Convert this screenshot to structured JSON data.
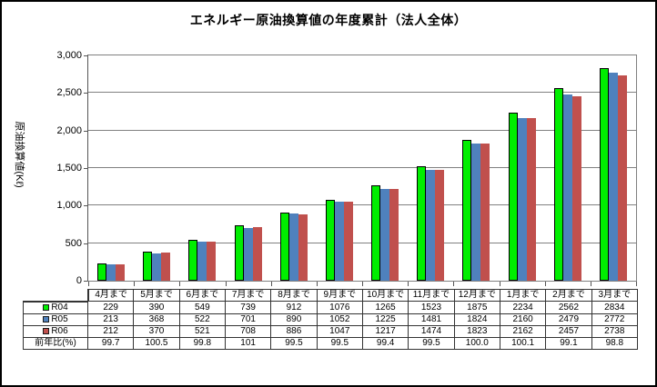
{
  "chart_data": {
    "type": "bar",
    "title": "エネルギー原油換算値の年度累計（法人全体）",
    "ylabel": "原油換算値(Kℓ)",
    "ylim": [
      0,
      3000
    ],
    "ytick_step": 500,
    "y_ticks": [
      "0",
      "500",
      "1,000",
      "1,500",
      "2,000",
      "2,500",
      "3,000"
    ],
    "grid": true,
    "legend_position": "table-left",
    "categories": [
      "4月まで",
      "5月まで",
      "6月まで",
      "7月まで",
      "8月まで",
      "9月まで",
      "10月まで",
      "11月まで",
      "12月まで",
      "1月まで",
      "2月まで",
      "3月まで"
    ],
    "series": [
      {
        "name": "R04",
        "color": "#00EE00",
        "border": "#000000",
        "values": [
          229,
          390,
          549,
          739,
          912,
          1076,
          1265,
          1523,
          1875,
          2234,
          2562,
          2834
        ]
      },
      {
        "name": "R05",
        "color": "#4F81BD",
        "border": null,
        "values": [
          213,
          368,
          522,
          701,
          890,
          1052,
          1225,
          1481,
          1824,
          2160,
          2479,
          2772
        ]
      },
      {
        "name": "R06",
        "color": "#C0504D",
        "border": null,
        "values": [
          212,
          370,
          521,
          708,
          886,
          1047,
          1217,
          1474,
          1823,
          2162,
          2457,
          2738
        ]
      }
    ],
    "extra_rows": [
      {
        "name": "前年比(%)",
        "values": [
          "99.7",
          "100.5",
          "99.8",
          "101",
          "99.5",
          "99.5",
          "99.4",
          "99.5",
          "100.0",
          "100.1",
          "99.1",
          "98.8"
        ]
      }
    ],
    "layout": {
      "grid_color": "#808080",
      "axis_color": "#555555",
      "table_border_color": "#333333"
    }
  }
}
